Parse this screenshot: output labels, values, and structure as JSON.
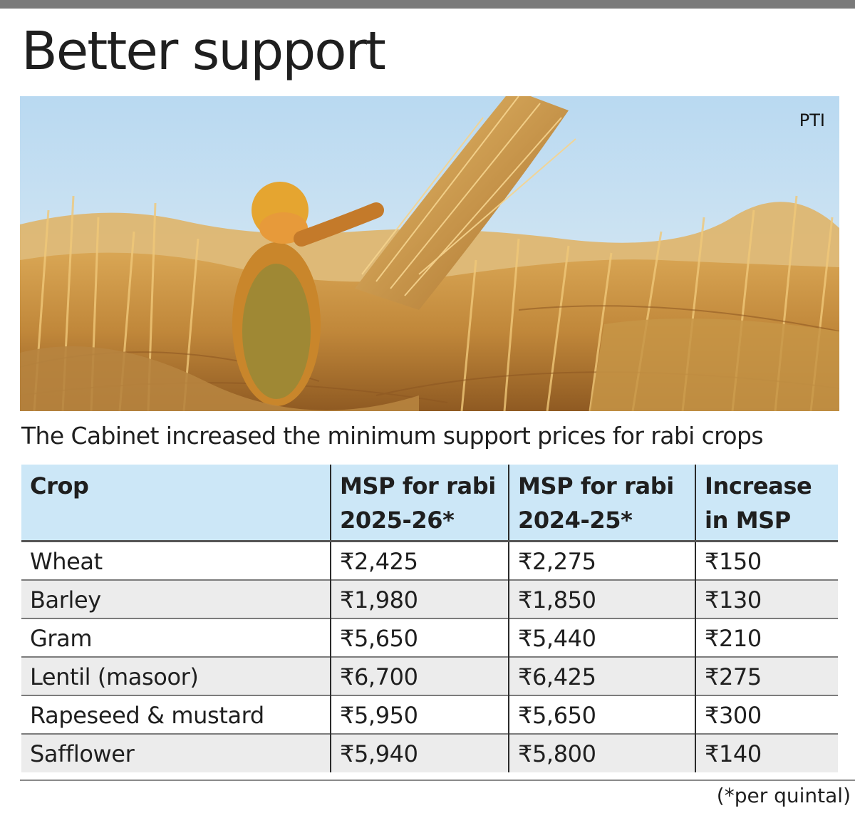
{
  "headline": "Better support",
  "photo": {
    "credit": "PTI"
  },
  "subheading": "The Cabinet increased the minimum support prices for rabi crops",
  "table": {
    "headers": {
      "crop": "Crop",
      "msp_2025_line1": "MSP for rabi",
      "msp_2025_line2": "2025-26*",
      "msp_2024_line1": "MSP for rabi",
      "msp_2024_line2": "2024-25*",
      "increase_line1": "Increase",
      "increase_line2": "in MSP"
    },
    "rows": [
      {
        "crop": "Wheat",
        "msp_2025": "₹2,425",
        "msp_2024": "₹2,275",
        "increase": "₹150"
      },
      {
        "crop": "Barley",
        "msp_2025": "₹1,980",
        "msp_2024": "₹1,850",
        "increase": "₹130"
      },
      {
        "crop": "Gram",
        "msp_2025": "₹5,650",
        "msp_2024": "₹5,440",
        "increase": "₹210"
      },
      {
        "crop": "Lentil (masoor)",
        "msp_2025": "₹6,700",
        "msp_2024": "₹6,425",
        "increase": "₹275"
      },
      {
        "crop": "Rapeseed & mustard",
        "msp_2025": "₹5,950",
        "msp_2024": "₹5,650",
        "increase": "₹300"
      },
      {
        "crop": "Safflower",
        "msp_2025": "₹5,940",
        "msp_2024": "₹5,800",
        "increase": "₹140"
      }
    ]
  },
  "footnote": "(*per quintal)",
  "colors": {
    "header_fill": "#cce7f7",
    "stripe_fill": "#ececec",
    "sky": "#cfe4f4",
    "wheat": "#d4a045"
  }
}
